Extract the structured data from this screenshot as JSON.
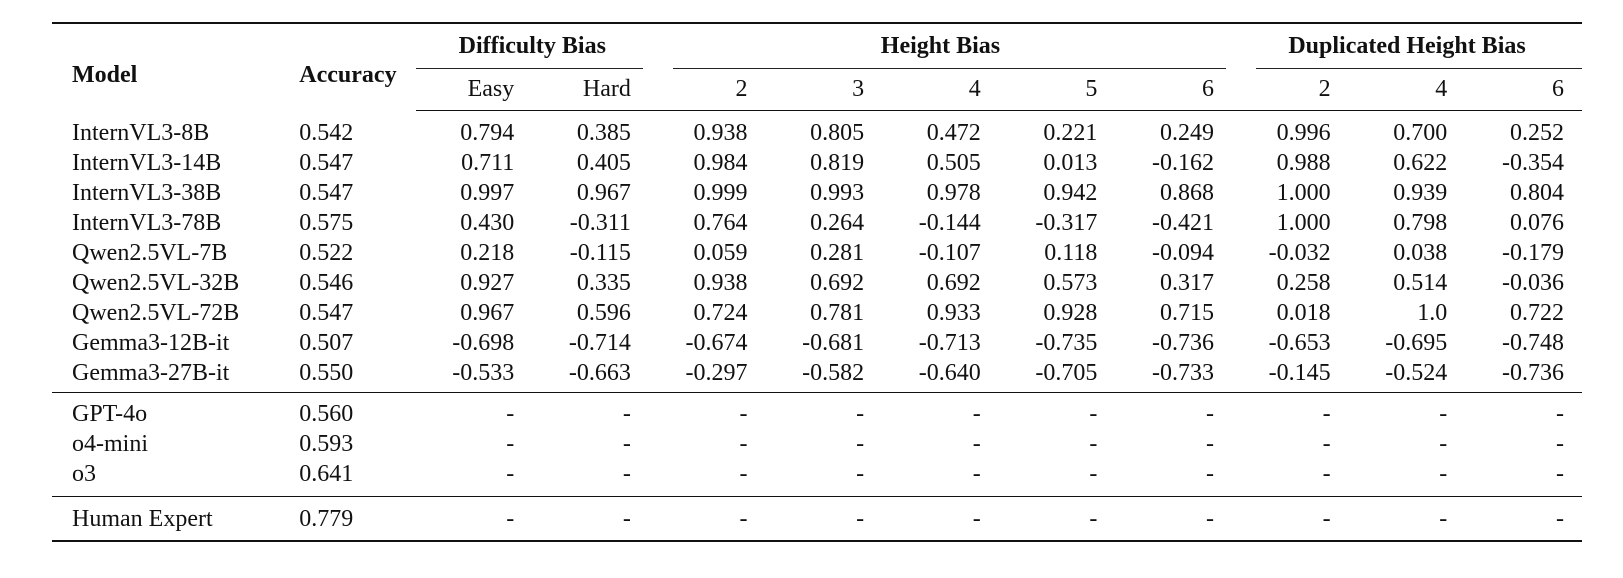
{
  "table": {
    "headers": {
      "model": "Model",
      "accuracy": "Accuracy",
      "groups": {
        "difficulty_bias": "Difficulty Bias",
        "height_bias": "Height Bias",
        "duplicated_height_bias": "Duplicated Height Bias"
      },
      "subcolumns": {
        "difficulty_bias": [
          "Easy",
          "Hard"
        ],
        "height_bias": [
          "2",
          "3",
          "4",
          "5",
          "6"
        ],
        "duplicated_height_bias": [
          "2",
          "4",
          "6"
        ]
      }
    },
    "open_models": [
      {
        "model": "InternVL3-8B",
        "accuracy": "0.542",
        "values": [
          "0.794",
          "0.385",
          "0.938",
          "0.805",
          "0.472",
          "0.221",
          "0.249",
          "0.996",
          "0.700",
          "0.252"
        ]
      },
      {
        "model": "InternVL3-14B",
        "accuracy": "0.547",
        "values": [
          "0.711",
          "0.405",
          "0.984",
          "0.819",
          "0.505",
          "0.013",
          "-0.162",
          "0.988",
          "0.622",
          "-0.354"
        ]
      },
      {
        "model": "InternVL3-38B",
        "accuracy": "0.547",
        "values": [
          "0.997",
          "0.967",
          "0.999",
          "0.993",
          "0.978",
          "0.942",
          "0.868",
          "1.000",
          "0.939",
          "0.804"
        ]
      },
      {
        "model": "InternVL3-78B",
        "accuracy": "0.575",
        "values": [
          "0.430",
          "-0.311",
          "0.764",
          "0.264",
          "-0.144",
          "-0.317",
          "-0.421",
          "1.000",
          "0.798",
          "0.076"
        ]
      },
      {
        "model": "Qwen2.5VL-7B",
        "accuracy": "0.522",
        "values": [
          "0.218",
          "-0.115",
          "0.059",
          "0.281",
          "-0.107",
          "0.118",
          "-0.094",
          "-0.032",
          "0.038",
          "-0.179"
        ]
      },
      {
        "model": "Qwen2.5VL-32B",
        "accuracy": "0.546",
        "values": [
          "0.927",
          "0.335",
          "0.938",
          "0.692",
          "0.692",
          "0.573",
          "0.317",
          "0.258",
          "0.514",
          "-0.036"
        ]
      },
      {
        "model": "Qwen2.5VL-72B",
        "accuracy": "0.547",
        "values": [
          "0.967",
          "0.596",
          "0.724",
          "0.781",
          "0.933",
          "0.928",
          "0.715",
          "0.018",
          "1.0",
          "0.722"
        ]
      },
      {
        "model": "Gemma3-12B-it",
        "accuracy": "0.507",
        "values": [
          "-0.698",
          "-0.714",
          "-0.674",
          "-0.681",
          "-0.713",
          "-0.735",
          "-0.736",
          "-0.653",
          "-0.695",
          "-0.748"
        ]
      },
      {
        "model": "Gemma3-27B-it",
        "accuracy": "0.550",
        "values": [
          "-0.533",
          "-0.663",
          "-0.297",
          "-0.582",
          "-0.640",
          "-0.705",
          "-0.733",
          "-0.145",
          "-0.524",
          "-0.736"
        ]
      }
    ],
    "closed_models": [
      {
        "model": "GPT-4o",
        "accuracy": "0.560",
        "values": [
          "-",
          "-",
          "-",
          "-",
          "-",
          "-",
          "-",
          "-",
          "-",
          "-"
        ]
      },
      {
        "model": "o4-mini",
        "accuracy": "0.593",
        "values": [
          "-",
          "-",
          "-",
          "-",
          "-",
          "-",
          "-",
          "-",
          "-",
          "-"
        ]
      },
      {
        "model": "o3",
        "accuracy": "0.641",
        "values": [
          "-",
          "-",
          "-",
          "-",
          "-",
          "-",
          "-",
          "-",
          "-",
          "-"
        ]
      }
    ],
    "human": [
      {
        "model": "Human Expert",
        "accuracy": "0.779",
        "values": [
          "-",
          "-",
          "-",
          "-",
          "-",
          "-",
          "-",
          "-",
          "-",
          "-"
        ]
      }
    ]
  }
}
